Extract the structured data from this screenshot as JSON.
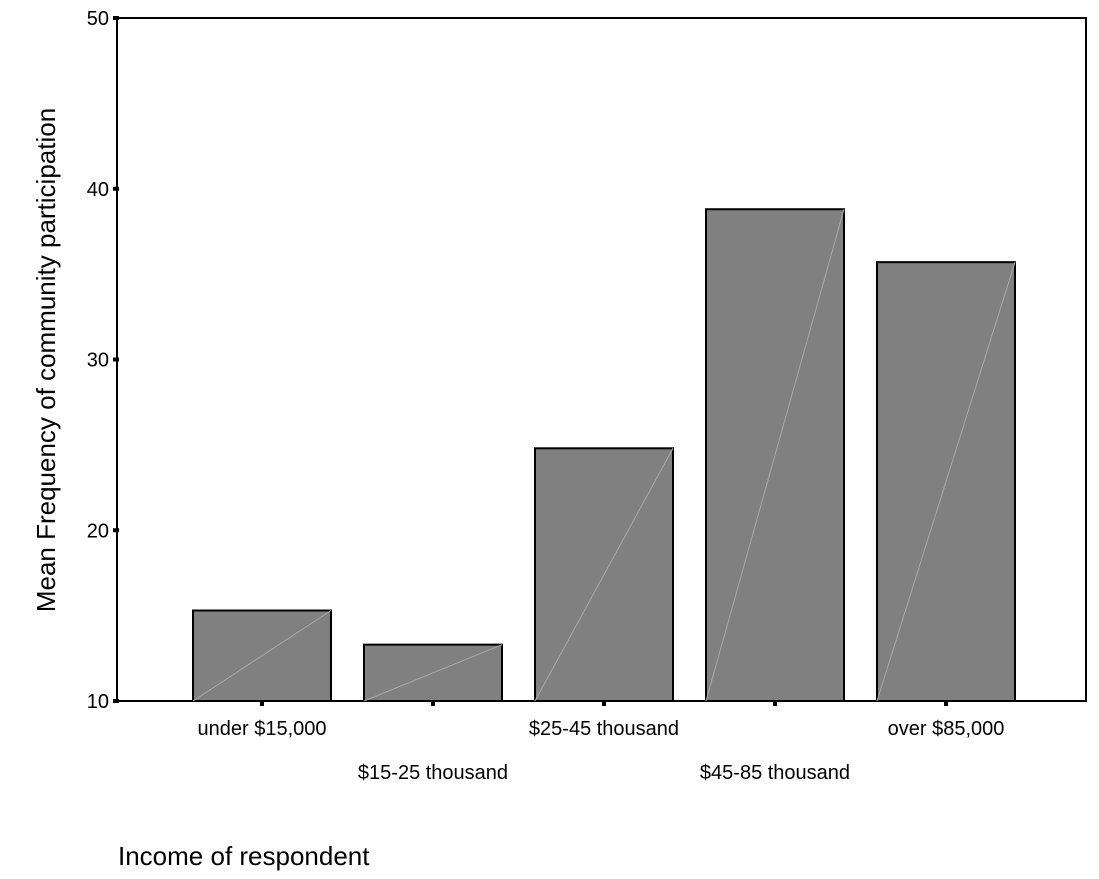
{
  "chart_data": {
    "type": "bar",
    "title": "",
    "xlabel": "Income of respondent",
    "ylabel": "Mean Frequency of community participation",
    "categories": [
      "under $15,000",
      "$15-25 thousand",
      "$25-45 thousand",
      "$45-85 thousand",
      "over $85,000"
    ],
    "values": [
      15.3,
      13.3,
      24.8,
      38.8,
      35.7
    ],
    "ylim": [
      10,
      50
    ],
    "yticks": [
      "10",
      "20",
      "30",
      "40",
      "50"
    ],
    "grid": false,
    "legend": "none",
    "colors": {
      "bar_fill": "#808080",
      "bar_stroke": "#000000",
      "bar_diagonal": "#a8a8a8",
      "axis": "#000000"
    }
  }
}
